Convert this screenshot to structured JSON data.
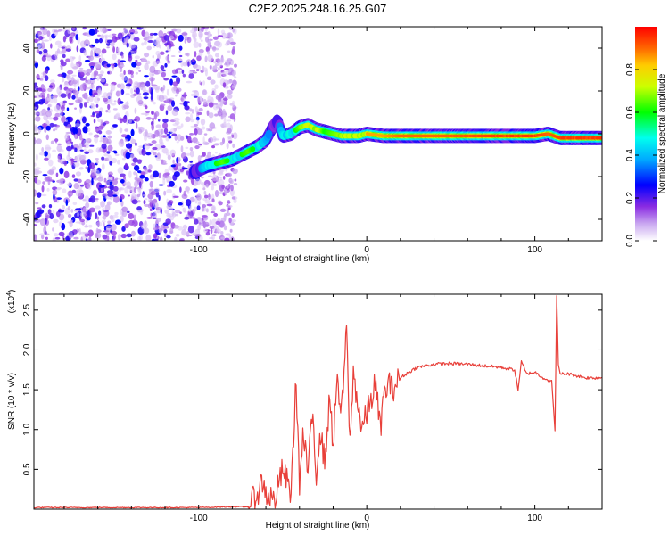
{
  "title": "C2E2.2025.248.16.25.G07",
  "chart_data": [
    {
      "type": "heatmap",
      "name": "spectrogram",
      "xlabel": "Height of straight line (km)",
      "ylabel": "Frequency (Hz)",
      "xlim": [
        -198,
        140
      ],
      "ylim": [
        -50,
        50
      ],
      "x_ticks": [
        -100,
        0,
        100
      ],
      "x_tick_labels": [
        "-100",
        "0",
        "100"
      ],
      "y_ticks": [
        -40,
        -20,
        0,
        20,
        40
      ],
      "y_tick_labels": [
        "-40",
        "-20",
        "0",
        "20",
        "40"
      ],
      "colorbar": {
        "label": "Normalized spectral amplitude",
        "range": [
          0,
          1
        ],
        "ticks": [
          0.0,
          0.2,
          0.4,
          0.6,
          0.8
        ],
        "tick_labels": [
          "0.0",
          "0.2",
          "0.4",
          "0.6",
          "0.8"
        ],
        "colormap": "rainbow",
        "colors": [
          "#ffffff",
          "#8a2be2",
          "#0000ff",
          "#00ffff",
          "#00ff00",
          "#ffff00",
          "#ff8000",
          "#ff0000"
        ]
      },
      "noise_region_km": [
        -198,
        -78
      ],
      "signal_track": {
        "x": [
          -103,
          -95,
          -90,
          -85,
          -80,
          -75,
          -70,
          -65,
          -60,
          -56,
          -53,
          -50,
          -45,
          -40,
          -35,
          -30,
          -25,
          -20,
          -15,
          -10,
          -5,
          0,
          10,
          20,
          40,
          60,
          80,
          100,
          108,
          115,
          140
        ],
        "freq": [
          -18,
          -15,
          -14,
          -13,
          -12,
          -10,
          -8,
          -6,
          -3,
          3,
          6,
          -1,
          0,
          3,
          4,
          2,
          1,
          0,
          -1,
          -1,
          -1,
          0,
          -1,
          -1,
          -1,
          -1,
          -1,
          -1,
          0,
          -2,
          -2
        ],
        "amplitude": [
          0.25,
          0.45,
          0.6,
          0.65,
          0.55,
          0.6,
          0.65,
          0.55,
          0.4,
          0.3,
          0.3,
          0.45,
          0.55,
          0.65,
          0.8,
          0.8,
          0.6,
          0.65,
          0.7,
          0.75,
          0.75,
          0.85,
          0.85,
          0.9,
          0.9,
          0.92,
          0.95,
          0.95,
          0.9,
          0.95,
          0.95
        ]
      }
    },
    {
      "type": "line",
      "name": "snr",
      "xlabel": "Height of straight line (km)",
      "ylabel": "SNR (10 * v/v)",
      "y_scale_label": "(x10^4)",
      "y_scale_base": "(x10",
      "y_scale_exp": "4",
      "y_scale_close": ")",
      "xlim": [
        -198,
        140
      ],
      "ylim": [
        0,
        2.7
      ],
      "x_ticks": [
        -100,
        0,
        100
      ],
      "x_tick_labels": [
        "-100",
        "0",
        "100"
      ],
      "y_ticks": [
        0.5,
        1.0,
        1.5,
        2.0,
        2.5
      ],
      "y_tick_labels": [
        "0.5",
        "1.0",
        "1.5",
        "2.0",
        "2.5"
      ],
      "color": "#e8403a",
      "series": [
        {
          "name": "SNR",
          "x": [
            -198,
            -150,
            -120,
            -100,
            -80,
            -70,
            -65,
            -62,
            -60,
            -57,
            -55,
            -50,
            -45,
            -42,
            -40,
            -38,
            -35,
            -32,
            -30,
            -28,
            -25,
            -22,
            -20,
            -18,
            -15,
            -12,
            -10,
            -8,
            -5,
            -3,
            0,
            3,
            5,
            8,
            10,
            13,
            15,
            18,
            20,
            25,
            30,
            35,
            40,
            50,
            60,
            70,
            80,
            88,
            90,
            92,
            95,
            100,
            105,
            110,
            112,
            113,
            114,
            115,
            120,
            130,
            140
          ],
          "y": [
            0.02,
            0.02,
            0.02,
            0.02,
            0.03,
            0.03,
            0.2,
            0.35,
            0.2,
            0.15,
            0.1,
            0.5,
            0.2,
            1.65,
            0.3,
            0.9,
            0.5,
            1.2,
            0.4,
            1.0,
            0.6,
            1.4,
            0.8,
            1.6,
            1.2,
            2.25,
            0.8,
            1.7,
            1.3,
            1.0,
            1.2,
            1.4,
            1.6,
            1.0,
            1.4,
            1.6,
            1.5,
            1.6,
            1.65,
            1.72,
            1.78,
            1.8,
            1.82,
            1.83,
            1.82,
            1.8,
            1.78,
            1.75,
            1.5,
            1.85,
            1.7,
            1.72,
            1.65,
            1.6,
            1.0,
            2.7,
            1.8,
            1.7,
            1.7,
            1.65,
            1.65
          ]
        }
      ]
    }
  ]
}
